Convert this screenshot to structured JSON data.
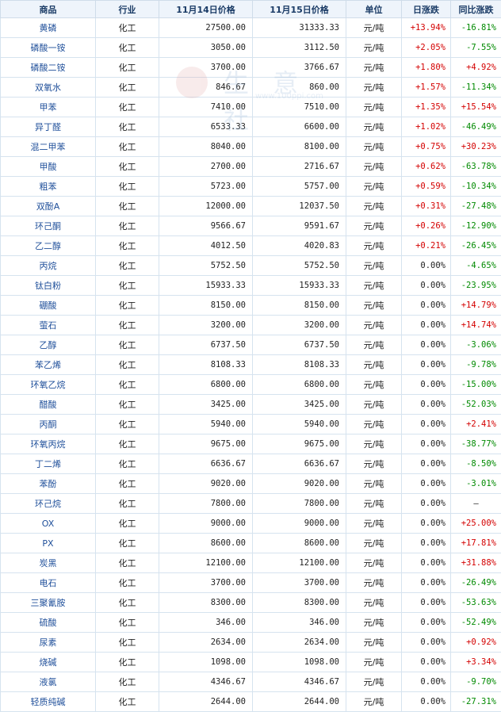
{
  "headers": [
    "商品",
    "行业",
    "11月14日价格",
    "11月15日价格",
    "单位",
    "日涨跌",
    "同比涨跌"
  ],
  "watermark": {
    "text": "生 意 社",
    "url": "www.100ppi.com"
  },
  "rows": [
    {
      "name": "黄磷",
      "industry": "化工",
      "p1": "27500.00",
      "p2": "31333.33",
      "unit": "元/吨",
      "day": "+13.94%",
      "yoy": "-16.81%"
    },
    {
      "name": "磷酸一铵",
      "industry": "化工",
      "p1": "3050.00",
      "p2": "3112.50",
      "unit": "元/吨",
      "day": "+2.05%",
      "yoy": "-7.55%"
    },
    {
      "name": "磷酸二铵",
      "industry": "化工",
      "p1": "3700.00",
      "p2": "3766.67",
      "unit": "元/吨",
      "day": "+1.80%",
      "yoy": "+4.92%"
    },
    {
      "name": "双氧水",
      "industry": "化工",
      "p1": "846.67",
      "p2": "860.00",
      "unit": "元/吨",
      "day": "+1.57%",
      "yoy": "-11.34%"
    },
    {
      "name": "甲苯",
      "industry": "化工",
      "p1": "7410.00",
      "p2": "7510.00",
      "unit": "元/吨",
      "day": "+1.35%",
      "yoy": "+15.54%"
    },
    {
      "name": "异丁醛",
      "industry": "化工",
      "p1": "6533.33",
      "p2": "6600.00",
      "unit": "元/吨",
      "day": "+1.02%",
      "yoy": "-46.49%"
    },
    {
      "name": "混二甲苯",
      "industry": "化工",
      "p1": "8040.00",
      "p2": "8100.00",
      "unit": "元/吨",
      "day": "+0.75%",
      "yoy": "+30.23%"
    },
    {
      "name": "甲酸",
      "industry": "化工",
      "p1": "2700.00",
      "p2": "2716.67",
      "unit": "元/吨",
      "day": "+0.62%",
      "yoy": "-63.78%"
    },
    {
      "name": "粗苯",
      "industry": "化工",
      "p1": "5723.00",
      "p2": "5757.00",
      "unit": "元/吨",
      "day": "+0.59%",
      "yoy": "-10.34%"
    },
    {
      "name": "双酚A",
      "industry": "化工",
      "p1": "12000.00",
      "p2": "12037.50",
      "unit": "元/吨",
      "day": "+0.31%",
      "yoy": "-27.48%"
    },
    {
      "name": "环己酮",
      "industry": "化工",
      "p1": "9566.67",
      "p2": "9591.67",
      "unit": "元/吨",
      "day": "+0.26%",
      "yoy": "-12.90%"
    },
    {
      "name": "乙二醇",
      "industry": "化工",
      "p1": "4012.50",
      "p2": "4020.83",
      "unit": "元/吨",
      "day": "+0.21%",
      "yoy": "-26.45%"
    },
    {
      "name": "丙烷",
      "industry": "化工",
      "p1": "5752.50",
      "p2": "5752.50",
      "unit": "元/吨",
      "day": "0.00%",
      "yoy": "-4.65%"
    },
    {
      "name": "钛白粉",
      "industry": "化工",
      "p1": "15933.33",
      "p2": "15933.33",
      "unit": "元/吨",
      "day": "0.00%",
      "yoy": "-23.95%"
    },
    {
      "name": "硼酸",
      "industry": "化工",
      "p1": "8150.00",
      "p2": "8150.00",
      "unit": "元/吨",
      "day": "0.00%",
      "yoy": "+14.79%"
    },
    {
      "name": "萤石",
      "industry": "化工",
      "p1": "3200.00",
      "p2": "3200.00",
      "unit": "元/吨",
      "day": "0.00%",
      "yoy": "+14.74%"
    },
    {
      "name": "乙醇",
      "industry": "化工",
      "p1": "6737.50",
      "p2": "6737.50",
      "unit": "元/吨",
      "day": "0.00%",
      "yoy": "-3.06%"
    },
    {
      "name": "苯乙烯",
      "industry": "化工",
      "p1": "8108.33",
      "p2": "8108.33",
      "unit": "元/吨",
      "day": "0.00%",
      "yoy": "-9.78%"
    },
    {
      "name": "环氧乙烷",
      "industry": "化工",
      "p1": "6800.00",
      "p2": "6800.00",
      "unit": "元/吨",
      "day": "0.00%",
      "yoy": "-15.00%"
    },
    {
      "name": "醋酸",
      "industry": "化工",
      "p1": "3425.00",
      "p2": "3425.00",
      "unit": "元/吨",
      "day": "0.00%",
      "yoy": "-52.03%"
    },
    {
      "name": "丙酮",
      "industry": "化工",
      "p1": "5940.00",
      "p2": "5940.00",
      "unit": "元/吨",
      "day": "0.00%",
      "yoy": "+2.41%"
    },
    {
      "name": "环氧丙烷",
      "industry": "化工",
      "p1": "9675.00",
      "p2": "9675.00",
      "unit": "元/吨",
      "day": "0.00%",
      "yoy": "-38.77%"
    },
    {
      "name": "丁二烯",
      "industry": "化工",
      "p1": "6636.67",
      "p2": "6636.67",
      "unit": "元/吨",
      "day": "0.00%",
      "yoy": "-8.50%"
    },
    {
      "name": "苯酚",
      "industry": "化工",
      "p1": "9020.00",
      "p2": "9020.00",
      "unit": "元/吨",
      "day": "0.00%",
      "yoy": "-3.01%"
    },
    {
      "name": "环己烷",
      "industry": "化工",
      "p1": "7800.00",
      "p2": "7800.00",
      "unit": "元/吨",
      "day": "0.00%",
      "yoy": "—"
    },
    {
      "name": "OX",
      "industry": "化工",
      "p1": "9000.00",
      "p2": "9000.00",
      "unit": "元/吨",
      "day": "0.00%",
      "yoy": "+25.00%"
    },
    {
      "name": "PX",
      "industry": "化工",
      "p1": "8600.00",
      "p2": "8600.00",
      "unit": "元/吨",
      "day": "0.00%",
      "yoy": "+17.81%"
    },
    {
      "name": "炭黑",
      "industry": "化工",
      "p1": "12100.00",
      "p2": "12100.00",
      "unit": "元/吨",
      "day": "0.00%",
      "yoy": "+31.88%"
    },
    {
      "name": "电石",
      "industry": "化工",
      "p1": "3700.00",
      "p2": "3700.00",
      "unit": "元/吨",
      "day": "0.00%",
      "yoy": "-26.49%"
    },
    {
      "name": "三聚氰胺",
      "industry": "化工",
      "p1": "8300.00",
      "p2": "8300.00",
      "unit": "元/吨",
      "day": "0.00%",
      "yoy": "-53.63%"
    },
    {
      "name": "硫酸",
      "industry": "化工",
      "p1": "346.00",
      "p2": "346.00",
      "unit": "元/吨",
      "day": "0.00%",
      "yoy": "-52.49%"
    },
    {
      "name": "尿素",
      "industry": "化工",
      "p1": "2634.00",
      "p2": "2634.00",
      "unit": "元/吨",
      "day": "0.00%",
      "yoy": "+0.92%"
    },
    {
      "name": "烧碱",
      "industry": "化工",
      "p1": "1098.00",
      "p2": "1098.00",
      "unit": "元/吨",
      "day": "0.00%",
      "yoy": "+3.34%"
    },
    {
      "name": "液氯",
      "industry": "化工",
      "p1": "4346.67",
      "p2": "4346.67",
      "unit": "元/吨",
      "day": "0.00%",
      "yoy": "-9.70%"
    },
    {
      "name": "轻质纯碱",
      "industry": "化工",
      "p1": "2644.00",
      "p2": "2644.00",
      "unit": "元/吨",
      "day": "0.00%",
      "yoy": "-27.31%"
    }
  ]
}
